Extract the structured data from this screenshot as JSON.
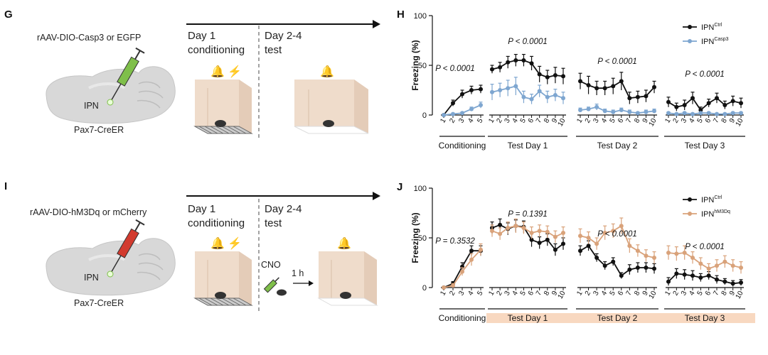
{
  "panels": {
    "G": {
      "letter": "G",
      "virus": "rAAV-DIO-Casp3 or EGFP",
      "region": "IPN",
      "mouse": "Pax7-CreER",
      "day1": "Day 1",
      "day1_sub": "conditioning",
      "day24": "Day 2-4",
      "day24_sub": "test"
    },
    "I": {
      "letter": "I",
      "virus": "rAAV-DIO-hM3Dq or mCherry",
      "region": "IPN",
      "mouse": "Pax7-CreER",
      "day1": "Day 1",
      "day1_sub": "conditioning",
      "day24": "Day 2-4",
      "day24_sub": "test",
      "drug": "CNO",
      "delay": "1 h"
    }
  },
  "colors": {
    "black": "#111111",
    "blue": "#7ea6d0",
    "orange": "#d9a27a",
    "highlight": "#f8d8c0",
    "box": "#efdccb",
    "virus_green": "#7fbf4a",
    "virus_red": "#d23b2f"
  },
  "chart_data": [
    {
      "panel": "H",
      "type": "line",
      "ylabel": "Freezing (%)",
      "yticks": [
        "0",
        "50",
        "100"
      ],
      "ylim": [
        0,
        100
      ],
      "legend": [
        {
          "base": "IPN",
          "sup": "Ctrl",
          "color": "#111111"
        },
        {
          "base": "IPN",
          "sup": "Casp3",
          "color": "#7ea6d0"
        }
      ],
      "groups": [
        {
          "label": "Conditioning",
          "n": 5,
          "ticks": [
            "1",
            "2",
            "3",
            "4",
            "5"
          ],
          "pval": "P < 0.0001",
          "series": [
            [
              0,
              12,
              21,
              25,
              26
            ],
            [
              0,
              1,
              2,
              6,
              10
            ]
          ],
          "err": [
            [
              1,
              3,
              4,
              4,
              4
            ],
            [
              1,
              1,
              1,
              2,
              3
            ]
          ]
        },
        {
          "label": "Test Day 1",
          "n": 10,
          "ticks": [
            "1",
            "2",
            "3",
            "4",
            "5",
            "6",
            "7",
            "8",
            "9",
            "10"
          ],
          "pval": "P < 0.0001",
          "series": [
            [
              46,
              48,
              53,
              55,
              55,
              52,
              41,
              38,
              40,
              39
            ],
            [
              23,
              25,
              27,
              29,
              18,
              16,
              24,
              18,
              20,
              17
            ]
          ],
          "err": [
            [
              4,
              5,
              6,
              6,
              6,
              7,
              8,
              7,
              8,
              8
            ],
            [
              8,
              7,
              8,
              9,
              6,
              5,
              6,
              6,
              6,
              6
            ]
          ]
        },
        {
          "label": "Test Day 2",
          "n": 10,
          "ticks": [
            "1",
            "2",
            "3",
            "4",
            "5",
            "6",
            "7",
            "8",
            "9",
            "10"
          ],
          "pval": "P < 0.0001",
          "series": [
            [
              34,
              30,
              27,
              27,
              29,
              34,
              17,
              18,
              19,
              28
            ],
            [
              5,
              6,
              8,
              4,
              3,
              5,
              3,
              2,
              3,
              4
            ]
          ],
          "err": [
            [
              8,
              9,
              7,
              7,
              8,
              9,
              6,
              6,
              6,
              6
            ],
            [
              2,
              2,
              3,
              2,
              2,
              2,
              2,
              1,
              2,
              2
            ]
          ]
        },
        {
          "label": "Test Day 3",
          "n": 10,
          "ticks": [
            "1",
            "2",
            "3",
            "4",
            "5",
            "6",
            "7",
            "8",
            "9",
            "10"
          ],
          "pval": "P < 0.0001",
          "series": [
            [
              13,
              8,
              10,
              17,
              5,
              12,
              17,
              10,
              14,
              12
            ],
            [
              2,
              1,
              2,
              1,
              2,
              2,
              1,
              1,
              2,
              2
            ]
          ],
          "err": [
            [
              5,
              4,
              5,
              6,
              3,
              4,
              5,
              4,
              5,
              5
            ],
            [
              1,
              1,
              1,
              1,
              1,
              1,
              1,
              1,
              1,
              1
            ]
          ]
        }
      ]
    },
    {
      "panel": "J",
      "type": "line",
      "ylabel": "Freezing (%)",
      "yticks": [
        "0",
        "50",
        "100"
      ],
      "ylim": [
        0,
        100
      ],
      "legend": [
        {
          "base": "IPN",
          "sup": "Ctrl",
          "color": "#111111"
        },
        {
          "base": "IPN",
          "sup": "hM3Dq",
          "color": "#d9a27a"
        }
      ],
      "groups": [
        {
          "label": "Conditioning",
          "n": 5,
          "ticks": [
            "1",
            "2",
            "3",
            "4",
            "5"
          ],
          "pval": "P = 0.3532",
          "highlight": false,
          "series": [
            [
              0,
              4,
              21,
              37,
              37
            ],
            [
              0,
              2,
              16,
              28,
              38
            ]
          ],
          "err": [
            [
              1,
              2,
              4,
              5,
              5
            ],
            [
              1,
              2,
              4,
              6,
              6
            ]
          ]
        },
        {
          "label": "Test Day 1",
          "n": 10,
          "ticks": [
            "1",
            "2",
            "3",
            "4",
            "5",
            "6",
            "7",
            "8",
            "9",
            "10"
          ],
          "pval": "P = 0.1391",
          "highlight": true,
          "series": [
            [
              60,
              63,
              59,
              62,
              61,
              48,
              45,
              48,
              38,
              44
            ],
            [
              57,
              54,
              60,
              62,
              60,
              55,
              57,
              56,
              51,
              55
            ]
          ],
          "err": [
            [
              6,
              6,
              6,
              6,
              6,
              7,
              6,
              6,
              6,
              6
            ],
            [
              6,
              6,
              6,
              7,
              6,
              6,
              6,
              6,
              6,
              6
            ]
          ]
        },
        {
          "label": "Test Day 2",
          "n": 10,
          "ticks": [
            "1",
            "2",
            "3",
            "4",
            "5",
            "6",
            "7",
            "8",
            "9",
            "10"
          ],
          "pval": "P < 0.0001",
          "highlight": true,
          "series": [
            [
              37,
              42,
              30,
              22,
              26,
              12,
              18,
              20,
              20,
              19
            ],
            [
              52,
              50,
              44,
              55,
              57,
              62,
              42,
              37,
              32,
              30
            ]
          ],
          "err": [
            [
              5,
              5,
              4,
              4,
              4,
              3,
              5,
              5,
              5,
              5
            ],
            [
              7,
              6,
              6,
              7,
              7,
              8,
              7,
              6,
              6,
              6
            ]
          ]
        },
        {
          "label": "Test Day 3",
          "n": 10,
          "ticks": [
            "1",
            "2",
            "3",
            "4",
            "5",
            "6",
            "7",
            "8",
            "9",
            "10"
          ],
          "pval": "P < 0.0001",
          "highlight": true,
          "series": [
            [
              6,
              14,
              13,
              12,
              10,
              12,
              8,
              6,
              4,
              5
            ],
            [
              35,
              34,
              35,
              30,
              24,
              19,
              22,
              26,
              22,
              20
            ]
          ],
          "err": [
            [
              4,
              5,
              5,
              5,
              4,
              4,
              4,
              3,
              3,
              3
            ],
            [
              7,
              7,
              7,
              6,
              6,
              5,
              6,
              6,
              6,
              6
            ]
          ]
        }
      ]
    }
  ]
}
